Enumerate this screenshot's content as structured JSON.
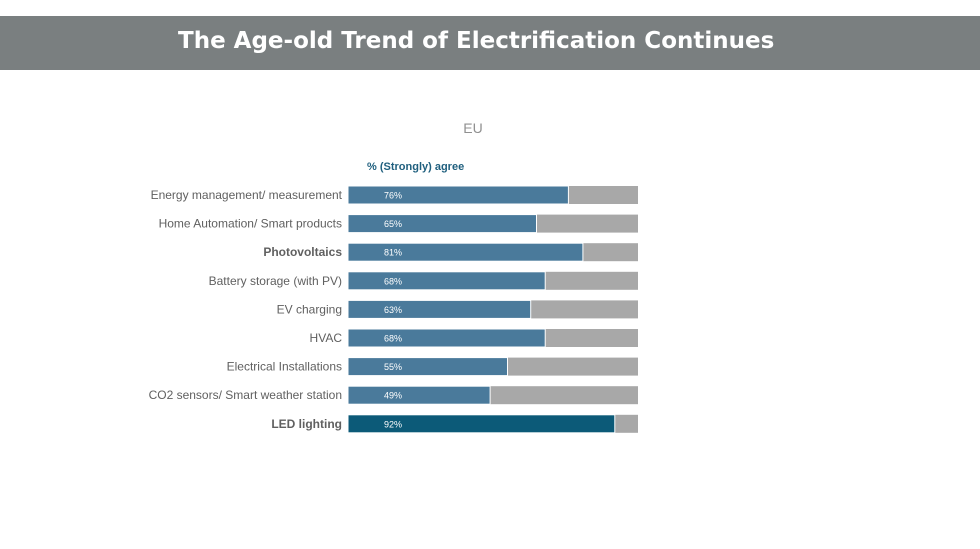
{
  "header": {
    "title": "The Age-old Trend of Electrification Continues"
  },
  "chart_data": {
    "type": "bar",
    "orientation": "horizontal",
    "stacked_to": 100,
    "title": "EU",
    "subtitle": "% (Strongly) agree",
    "xlabel": "",
    "ylabel": "",
    "xlim": [
      0,
      100
    ],
    "grid": false,
    "legend": "none",
    "categories": [
      "Energy management/ measurement",
      "Home Automation/ Smart products",
      "Photovoltaics",
      "Battery storage (with PV)",
      "EV charging",
      "HVAC",
      "Electrical Installations",
      "CO2 sensors/ Smart weather station",
      "LED lighting"
    ],
    "bold_categories": [
      "Photovoltaics",
      "LED lighting"
    ],
    "values": [
      76,
      65,
      81,
      68,
      63,
      68,
      55,
      49,
      92
    ],
    "value_labels": [
      "76%",
      "65%",
      "81%",
      "68%",
      "63%",
      "68%",
      "55%",
      "49%",
      "92%"
    ],
    "colors": {
      "agree": "#4a7a9b",
      "highlight": "#0c5a78",
      "remainder": "#a8a8a8",
      "label": "#606060"
    }
  }
}
